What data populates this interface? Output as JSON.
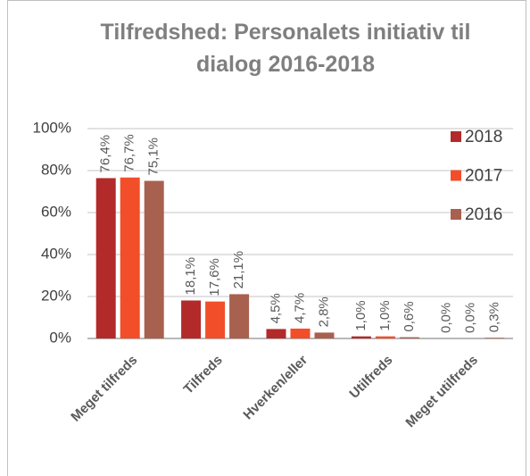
{
  "chart_data": {
    "type": "bar",
    "title": "Tilfredshed: Personalets initiativ til dialog 2016-2018",
    "categories": [
      "Meget tilfreds",
      "Tilfreds",
      "Hverken/eller",
      "Utilfreds",
      "Meget utilfreds"
    ],
    "series": [
      {
        "name": "2018",
        "color": "#b22a2a",
        "values": [
          76.4,
          18.1,
          4.5,
          1.0,
          0.0
        ],
        "value_labels": [
          "76,4%",
          "18,1%",
          "4,5%",
          "1,0%",
          "0,0%"
        ]
      },
      {
        "name": "2017",
        "color": "#f24e2a",
        "values": [
          76.7,
          17.6,
          4.7,
          1.0,
          0.0
        ],
        "value_labels": [
          "76,7%",
          "17,6%",
          "4,7%",
          "1,0%",
          "0,0%"
        ]
      },
      {
        "name": "2016",
        "color": "#a8604f",
        "values": [
          75.1,
          21.1,
          2.8,
          0.6,
          0.3
        ],
        "value_labels": [
          "75,1%",
          "21,1%",
          "2,8%",
          "0,6%",
          "0,3%"
        ]
      }
    ],
    "ylim": [
      0,
      100
    ],
    "yticks": [
      {
        "value": 0,
        "label": "0%"
      },
      {
        "value": 20,
        "label": "20%"
      },
      {
        "value": 40,
        "label": "40%"
      },
      {
        "value": 60,
        "label": "60%"
      },
      {
        "value": 80,
        "label": "80%"
      },
      {
        "value": 100,
        "label": "100%"
      }
    ],
    "grid": true,
    "legend": "right"
  }
}
